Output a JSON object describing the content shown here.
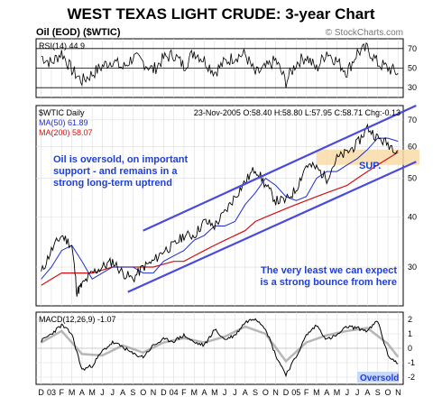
{
  "title": "WEST TEXAS LIGHT CRUDE: 3-year Chart",
  "subtitle": "Oil (EOD) ($WTIC)",
  "watermark": "© StockCharts.com",
  "rsi_label": "RSI(14) 44.9",
  "symbol_label": "$WTIC Daily",
  "quote_line": "23-Nov-2005 O:58.40 H:58.80 L:57.95 C:58.71 Chg:-0.13",
  "ma50_label": "MA(50) 61.89",
  "ma200_label": "MA(200) 58.07",
  "macd_label": "MACD(12,26,9) -1.07",
  "annotation_left": [
    "Oil is oversold, on important",
    "support - and remains in a",
    "strong long-term uptrend"
  ],
  "annotation_right": [
    "The very least we can expect",
    "is a strong bounce from here"
  ],
  "sup_label": "SUP.",
  "oversold_label": "Oversold",
  "colors": {
    "title": "#000000",
    "annotation": "#1f3fd6",
    "channel": "#4a4adc",
    "ma50": "#1f2fd0",
    "ma200": "#d41010",
    "price": "#000000",
    "support_zone": "#f8dca8",
    "grid": "#dcdcdc",
    "oversold_box": "#c8d8f8"
  },
  "chart_data": [
    {
      "type": "line",
      "panel": "RSI",
      "title": "RSI(14) 44.9",
      "y_ticks": [
        30,
        50,
        70
      ],
      "ylim": [
        20,
        80
      ],
      "reference_lines": [
        70,
        50,
        30
      ],
      "series": [
        {
          "name": "RSI(14)",
          "x_months": [
            0,
            1,
            2,
            3,
            4,
            5,
            6,
            7,
            8,
            9,
            10,
            11,
            12,
            13,
            14,
            15,
            16,
            17,
            18,
            19,
            20,
            21,
            22,
            23,
            24,
            25,
            26,
            27,
            28,
            29,
            30,
            31,
            32,
            33,
            34,
            35
          ],
          "values": [
            62,
            55,
            66,
            48,
            37,
            44,
            52,
            58,
            50,
            61,
            56,
            48,
            60,
            64,
            52,
            67,
            58,
            46,
            56,
            62,
            64,
            44,
            50,
            58,
            36,
            55,
            62,
            49,
            67,
            57,
            46,
            66,
            70,
            55,
            50,
            44.9
          ]
        }
      ]
    },
    {
      "type": "line",
      "panel": "Price",
      "title": "$WTIC Daily",
      "y_ticks": [
        30,
        40,
        50,
        60,
        70
      ],
      "ylim": [
        24,
        76
      ],
      "log_scale": true,
      "x_tick_labels": [
        "D",
        "03",
        "F",
        "M",
        "A",
        "M",
        "J",
        "J",
        "A",
        "S",
        "O",
        "N",
        "D",
        "04",
        "F",
        "M",
        "A",
        "M",
        "J",
        "J",
        "A",
        "S",
        "O",
        "N",
        "D",
        "05",
        "F",
        "M",
        "A",
        "M",
        "J",
        "J",
        "A",
        "S",
        "O",
        "N"
      ],
      "series": [
        {
          "name": "Close",
          "x_months": [
            0,
            1,
            2,
            3,
            3.5,
            4,
            5,
            6,
            7,
            8,
            9,
            10,
            11,
            12,
            13,
            14,
            15,
            16,
            17,
            18,
            19,
            20,
            21,
            22,
            23,
            24,
            25,
            26,
            27,
            28,
            29,
            30,
            31,
            32,
            33,
            34,
            35
          ],
          "values": [
            29,
            33,
            36,
            34,
            26,
            27,
            29,
            30,
            31,
            29,
            28,
            30,
            31,
            33,
            34,
            36,
            36,
            39,
            38,
            41,
            45,
            49,
            53,
            48,
            44,
            44,
            47,
            54,
            53,
            50,
            56,
            58,
            61,
            67,
            63,
            61,
            58.71
          ]
        },
        {
          "name": "MA(50) 61.89",
          "x_months": [
            0,
            1,
            2,
            3,
            4,
            5,
            6,
            7,
            8,
            9,
            10,
            11,
            12,
            13,
            14,
            15,
            16,
            17,
            18,
            19,
            20,
            21,
            22,
            23,
            24,
            25,
            26,
            27,
            28,
            29,
            30,
            31,
            32,
            33,
            34,
            35
          ],
          "values": [
            28,
            30,
            33,
            34,
            31,
            28,
            29,
            30,
            30,
            30,
            29,
            29,
            31,
            32,
            33,
            35,
            36,
            38,
            38,
            39,
            43,
            46,
            50,
            48,
            45,
            44,
            45,
            50,
            52,
            52,
            54,
            56,
            59,
            63,
            63,
            61.89
          ]
        },
        {
          "name": "MA(200) 58.07",
          "x_months": [
            0,
            1,
            2,
            3,
            4,
            5,
            6,
            7,
            8,
            9,
            10,
            11,
            12,
            13,
            14,
            15,
            16,
            17,
            18,
            19,
            20,
            21,
            22,
            23,
            24,
            25,
            26,
            27,
            28,
            29,
            30,
            31,
            32,
            33,
            34,
            35
          ],
          "values": [
            27,
            28,
            29,
            29,
            29,
            29,
            29.5,
            30,
            30,
            30,
            30,
            30,
            30.5,
            31,
            31,
            32,
            33,
            34,
            35,
            36,
            37,
            39,
            40,
            41,
            42,
            43,
            44,
            45,
            46,
            47,
            48,
            50,
            52,
            54,
            56,
            58.07
          ]
        }
      ],
      "annotations": [
        "Oil is oversold, on important support - and remains in a strong long-term uptrend",
        "The very least we can expect is a strong bounce from here",
        "SUP."
      ]
    },
    {
      "type": "line",
      "panel": "MACD",
      "title": "MACD(12,26,9) -1.07",
      "y_ticks": [
        2,
        1,
        0,
        -1,
        -2
      ],
      "ylim": [
        -2.5,
        2.5
      ],
      "series": [
        {
          "name": "MACD",
          "x_months": [
            0,
            1,
            2,
            3,
            4,
            5,
            6,
            7,
            8,
            9,
            10,
            11,
            12,
            13,
            14,
            15,
            16,
            17,
            18,
            19,
            20,
            21,
            22,
            23,
            24,
            25,
            26,
            27,
            28,
            29,
            30,
            31,
            32,
            33,
            34,
            35
          ],
          "values": [
            0.5,
            1.0,
            1.6,
            1.0,
            -1.5,
            -1.2,
            -0.2,
            0.4,
            0.1,
            -0.4,
            -0.6,
            0.2,
            0.6,
            0.5,
            0.9,
            0.4,
            0.2,
            1.3,
            0.6,
            0.9,
            1.8,
            2.1,
            1.4,
            -0.5,
            -1.8,
            -0.6,
            0.9,
            1.6,
            0.6,
            0.9,
            1.5,
            1.4,
            1.2,
            1.9,
            -0.5,
            -1.07
          ]
        },
        {
          "name": "Signal",
          "x_months": [
            0,
            2,
            4,
            6,
            8,
            10,
            12,
            14,
            16,
            18,
            20,
            22,
            24,
            26,
            28,
            30,
            32,
            34,
            35
          ],
          "values": [
            0.4,
            1.2,
            -0.4,
            -0.5,
            0.2,
            -0.3,
            0.4,
            0.7,
            0.4,
            0.8,
            1.5,
            1.0,
            -0.9,
            0.4,
            0.9,
            1.2,
            1.4,
            0.3,
            -0.6
          ]
        }
      ],
      "annotations": [
        "Oversold"
      ]
    }
  ]
}
